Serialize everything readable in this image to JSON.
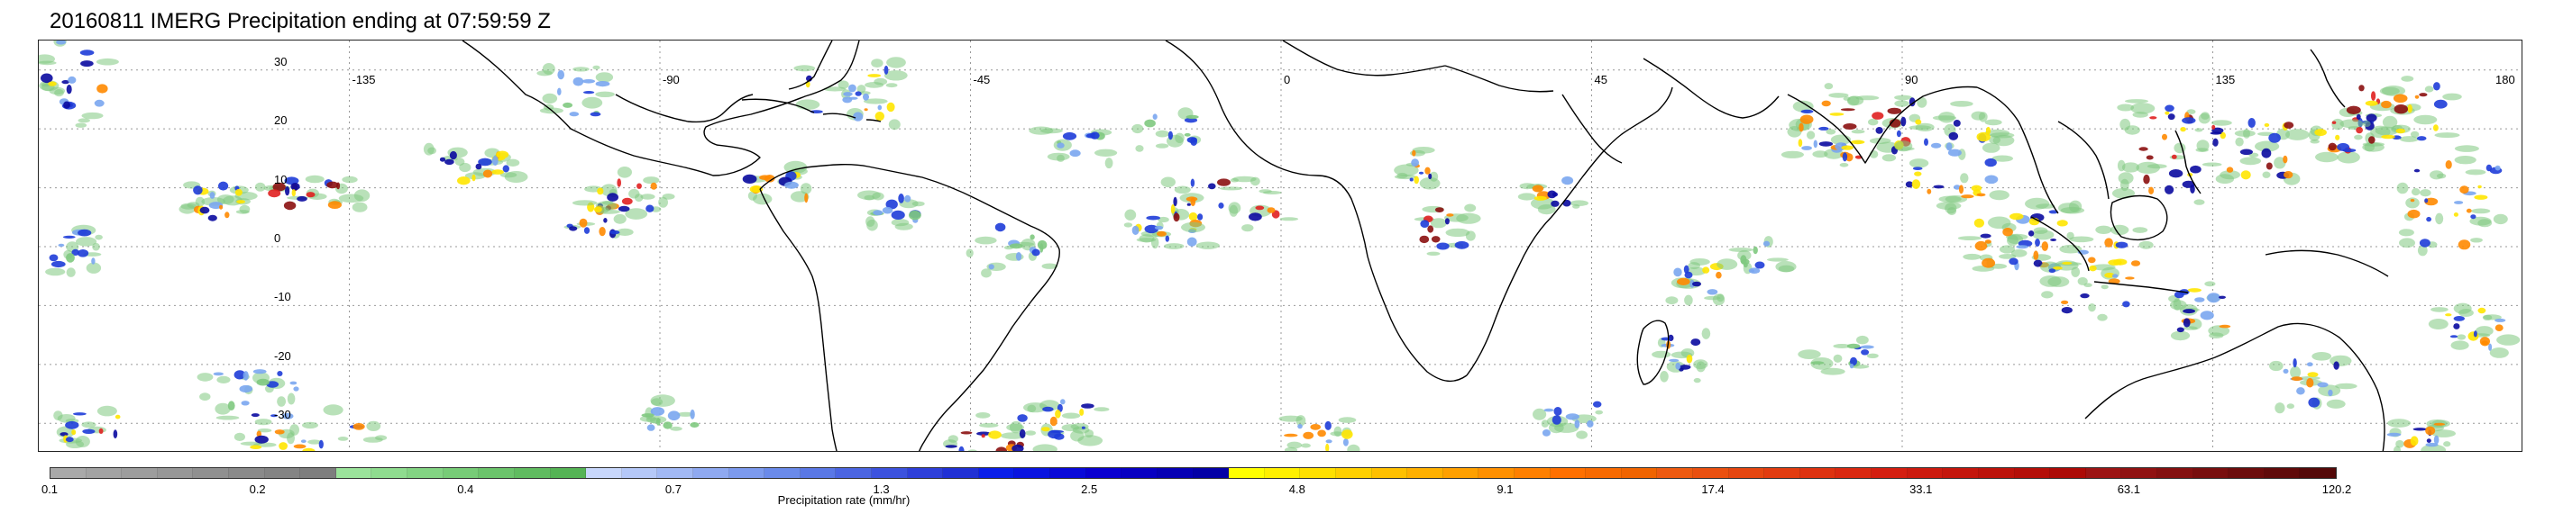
{
  "title": "20160811 IMERG Precipitation ending at 07:59:59 Z",
  "map": {
    "lon_labels": [
      "-135",
      "-90",
      "-45",
      "0",
      "45",
      "90",
      "135",
      "180"
    ],
    "lat_labels": [
      "30",
      "20",
      "10",
      "0",
      "-10",
      "-20",
      "-30"
    ],
    "lon_values": [
      -135,
      -90,
      -45,
      0,
      45,
      90,
      135,
      180
    ],
    "lat_values": [
      30,
      20,
      10,
      0,
      -10,
      -20,
      -30
    ],
    "lon_range": [
      -180,
      180
    ],
    "lat_range": [
      -35,
      35
    ],
    "grid": "dotted",
    "coastline_color": "#000000"
  },
  "colorbar": {
    "label": "Precipitation rate (mm/hr)",
    "tick_labels": [
      "0.1",
      "0.2",
      "0.4",
      "0.7",
      "1.3",
      "2.5",
      "4.8",
      "9.1",
      "17.4",
      "33.1",
      "63.1",
      "120.2"
    ],
    "colors": [
      "#a9a9a9",
      "#a3a3a3",
      "#9d9d9d",
      "#979797",
      "#909090",
      "#8a8a8a",
      "#848484",
      "#7e7e7e",
      "#9be39b",
      "#8fdc8f",
      "#83d483",
      "#77cc77",
      "#6bc46b",
      "#60bc60",
      "#55b455",
      "#c8d7fb",
      "#b5c8f8",
      "#a2b9f5",
      "#8fa9f1",
      "#7c9aee",
      "#6a8aea",
      "#5a78e6",
      "#4b65e2",
      "#3c52de",
      "#2e3fd9",
      "#2030d5",
      "#0a1ee8",
      "#0a14e0",
      "#0a0ad8",
      "#0a00d0",
      "#0800c2",
      "#0600b4",
      "#0400a6",
      "#ffff00",
      "#fff000",
      "#ffe000",
      "#ffd000",
      "#ffc000",
      "#ffb000",
      "#ffa000",
      "#ff9000",
      "#ff8000",
      "#ff7000",
      "#f86a00",
      "#f06400",
      "#ee5a10",
      "#ea5010",
      "#e64610",
      "#e23c10",
      "#de3210",
      "#da2810",
      "#d41e10",
      "#cc1a0e",
      "#c4160c",
      "#bc120a",
      "#b40e08",
      "#ac0a06",
      "#9c1414",
      "#901212",
      "#841010",
      "#780e0e",
      "#6c0c0c",
      "#600a0a",
      "#540808"
    ],
    "precip_palette": {
      "light_green": "#7fc97f",
      "light_blue": "#7aa6f0",
      "blue": "#1e3cd8",
      "dark_blue": "#0a0aa0",
      "yellow": "#ffe600",
      "orange": "#ff8a00",
      "red": "#e02020",
      "dark_red": "#8b1010"
    }
  }
}
